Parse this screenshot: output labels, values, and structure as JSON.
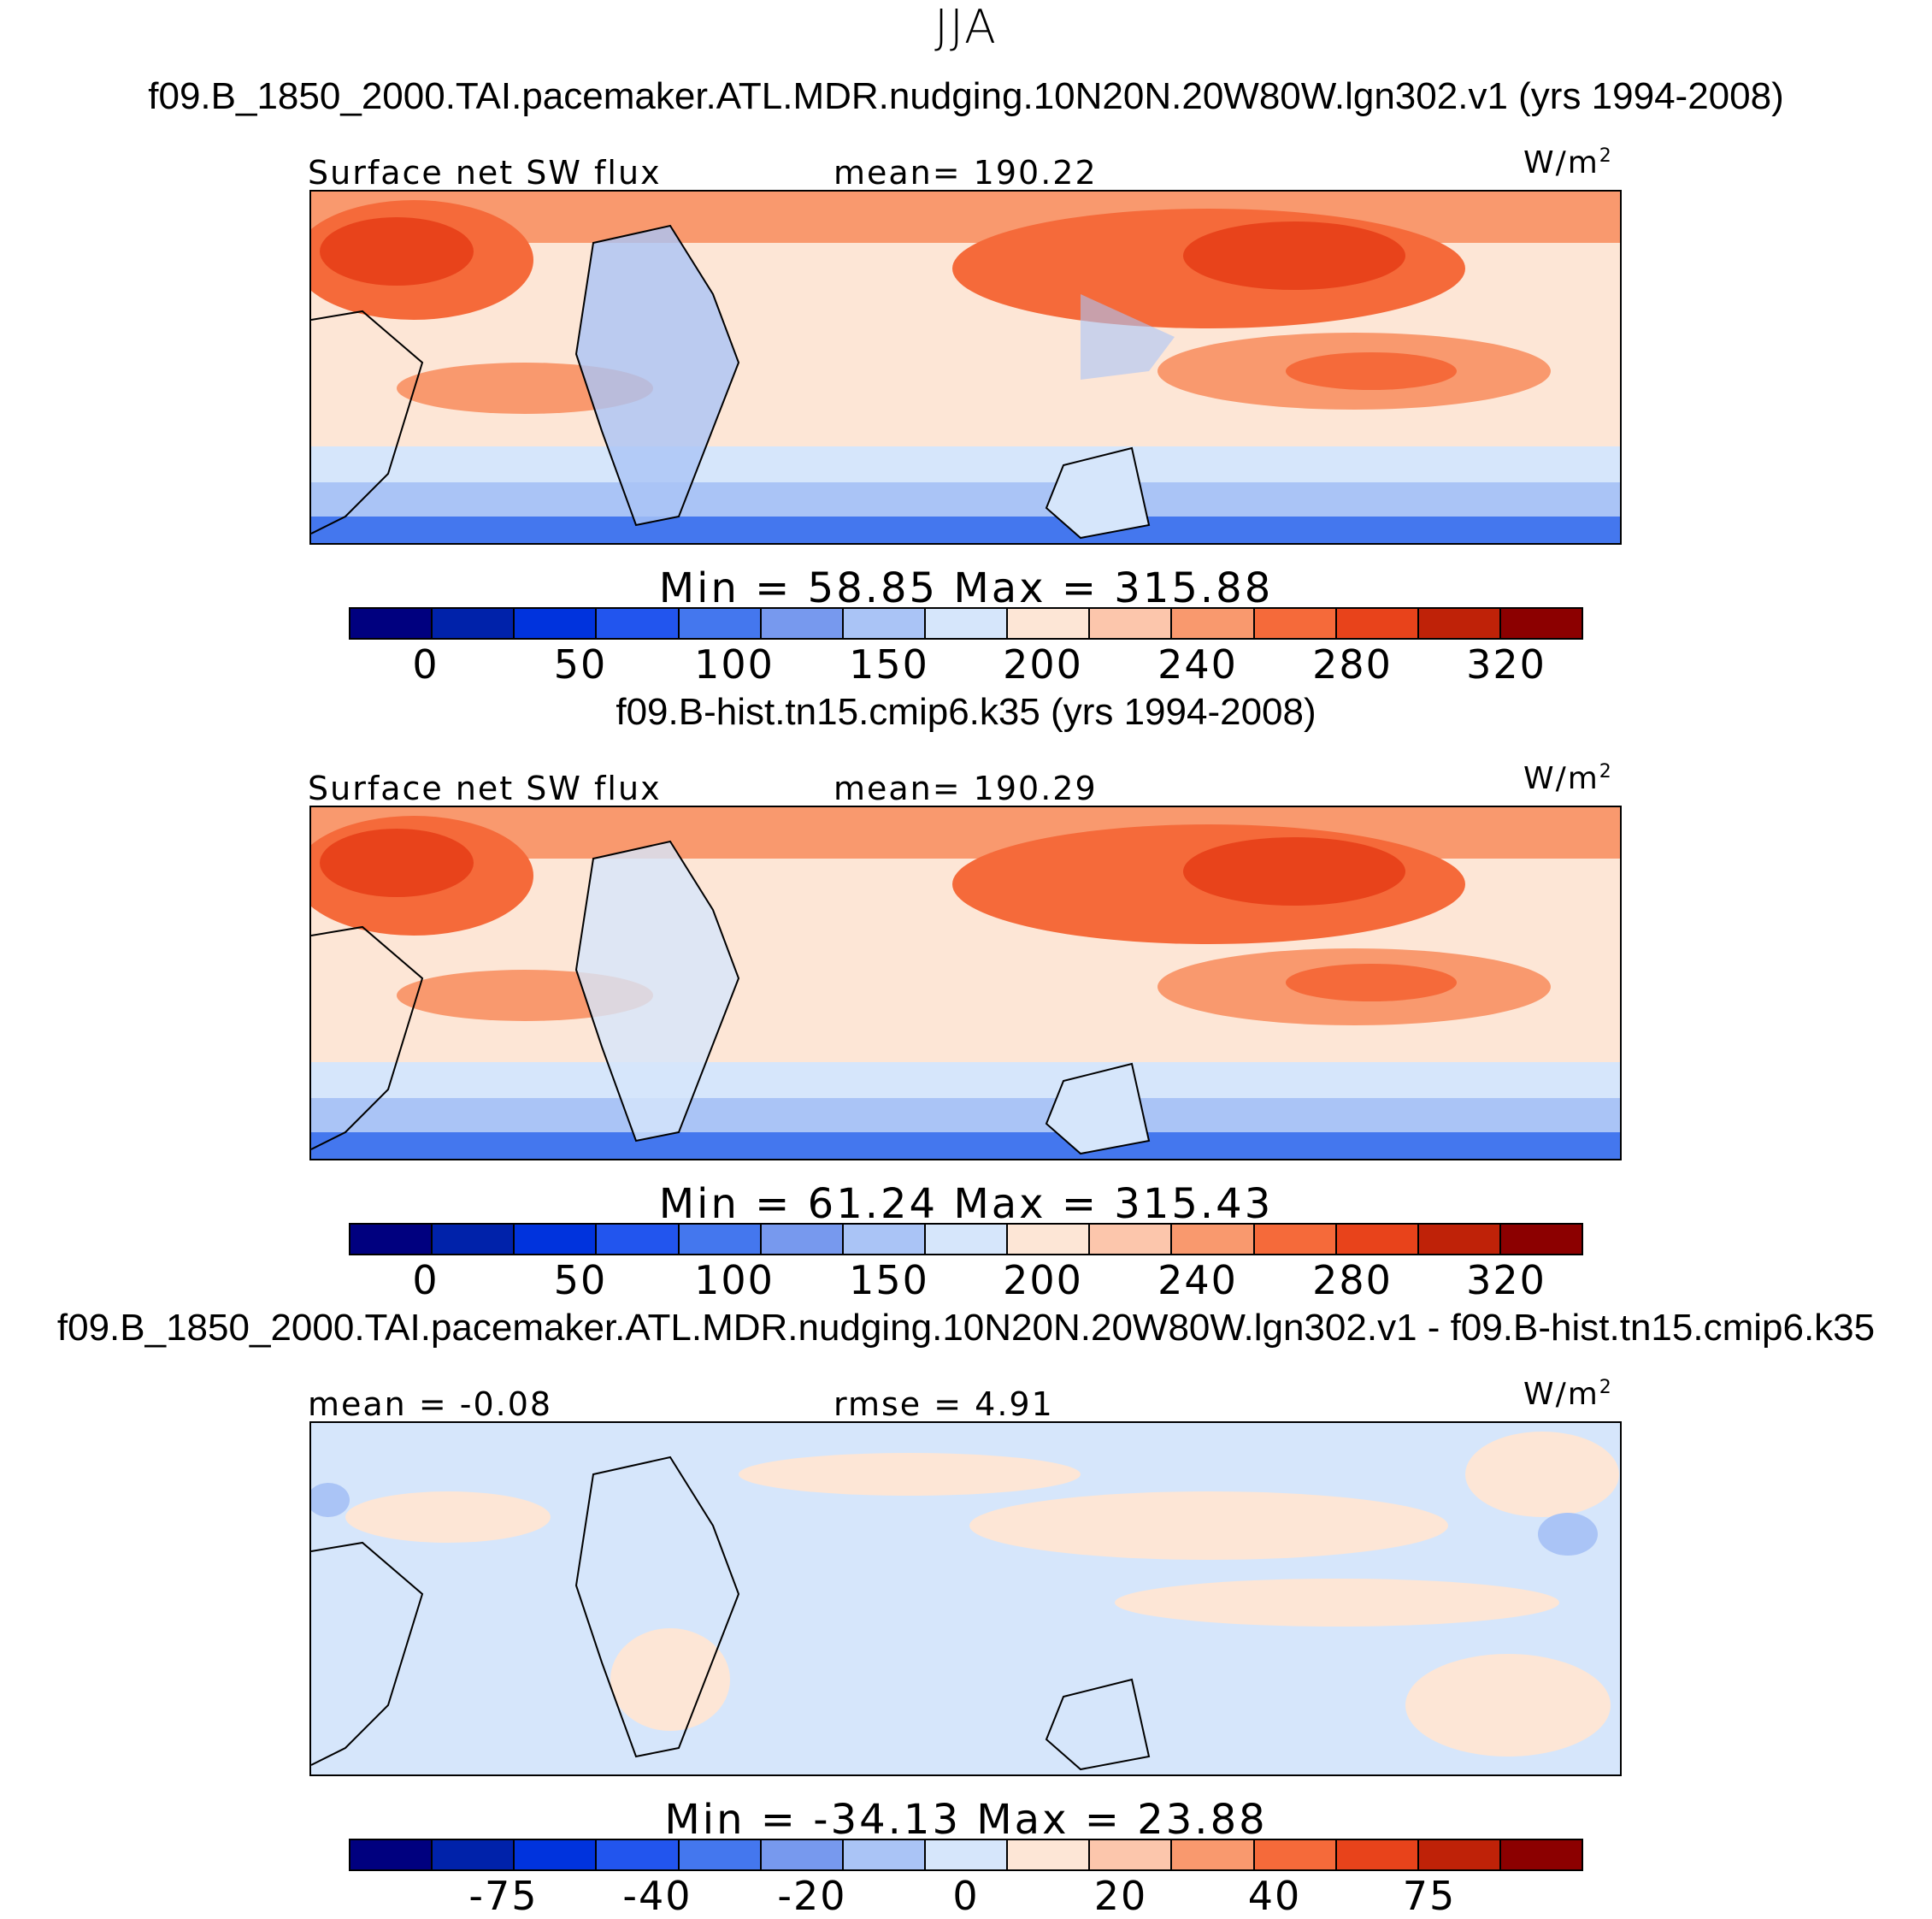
{
  "season": "JJA",
  "panels": [
    {
      "case_title": "f09.B_1850_2000.TAI.pacemaker.ATL.MDR.nudging.10N20N.20W80W.lgn302.v1 (yrs 1994-2008)",
      "left_label": "Surface net SW flux",
      "center_label": "mean= 190.22",
      "units": "W/m",
      "units_sup": "2",
      "minmax": "Min =  58.85 Max = 315.88",
      "ticks": [
        "0",
        "50",
        "100",
        "150",
        "200",
        "240",
        "280",
        "320"
      ]
    },
    {
      "case_title": "f09.B-hist.tn15.cmip6.k35 (yrs 1994-2008)",
      "left_label": "Surface net SW flux",
      "center_label": "mean= 190.29",
      "units": "W/m",
      "units_sup": "2",
      "minmax": "Min =  61.24 Max = 315.43",
      "ticks": [
        "0",
        "50",
        "100",
        "150",
        "200",
        "240",
        "280",
        "320"
      ]
    },
    {
      "case_title": "f09.B_1850_2000.TAI.pacemaker.ATL.MDR.nudging.10N20N.20W80W.lgn302.v1 - f09.B-hist.tn15.cmip6.k35",
      "left_label": "mean =  -0.08",
      "center_label": "rmse =   4.91",
      "units": "W/m",
      "units_sup": "2",
      "minmax": "Min = -34.13 Max =  23.88",
      "ticks": [
        "-75",
        "-40",
        "-20",
        "0",
        "20",
        "40",
        "75"
      ]
    }
  ],
  "colorbar_colors": [
    "#00007f",
    "#0022aa",
    "#0033dd",
    "#2255ee",
    "#4477ee",
    "#7799ee",
    "#aac4f6",
    "#d6e6fb",
    "#fde6d6",
    "#fcc6ac",
    "#f9996e",
    "#f56a3a",
    "#e8431b",
    "#bf2208",
    "#8c0000"
  ]
}
